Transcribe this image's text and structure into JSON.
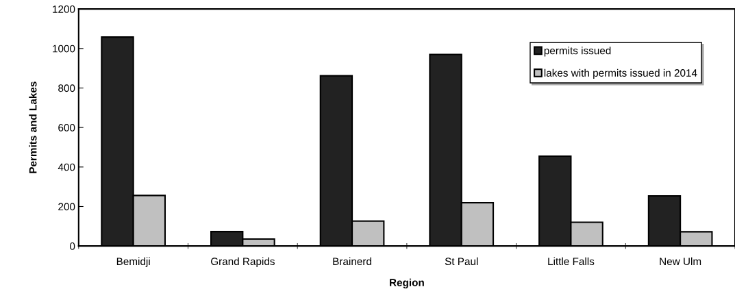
{
  "chart_data": {
    "type": "bar",
    "xlabel": "Region",
    "ylabel": "Permits and Lakes",
    "categories": [
      "Bemidji",
      "Grand Rapids",
      "Brainerd",
      "St Paul",
      "Little Falls",
      "New Ulm"
    ],
    "series": [
      {
        "name": "permits issued",
        "color": "#222222",
        "values": [
          1058,
          73,
          862,
          970,
          455,
          254
        ]
      },
      {
        "name": "lakes with permits issued in 2014",
        "color": "#c0c0c0",
        "values": [
          256,
          35,
          126,
          219,
          120,
          72
        ]
      }
    ],
    "ylim": [
      0,
      1200
    ],
    "yticks": [
      0,
      200,
      400,
      600,
      800,
      1000,
      1200
    ],
    "grid": false,
    "legend": "top right"
  }
}
